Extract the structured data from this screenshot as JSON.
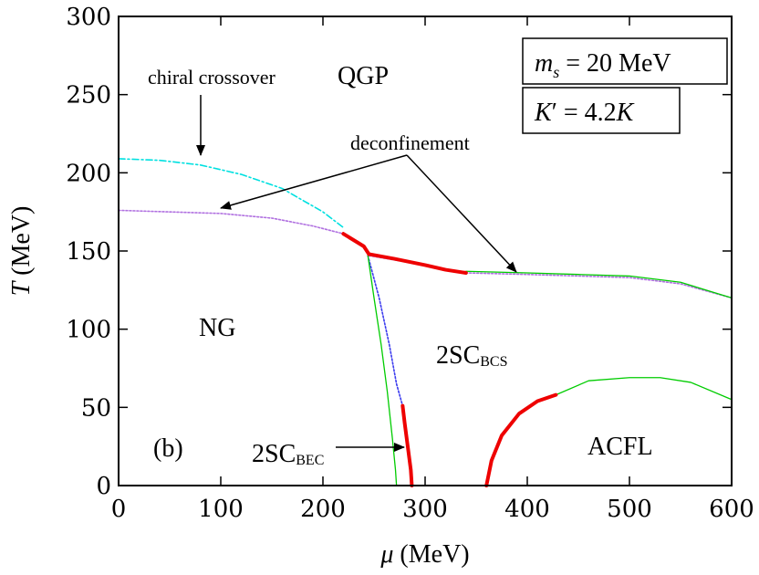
{
  "chart_data": {
    "type": "line",
    "xlabel": {
      "symbol": "μ",
      "unit": " (MeV)"
    },
    "ylabel": {
      "symbol": "T",
      "unit": " (MeV)"
    },
    "xlim": [
      0,
      600
    ],
    "ylim": [
      0,
      300
    ],
    "xticks": [
      "0",
      "100",
      "200",
      "300",
      "400",
      "500",
      "600"
    ],
    "yticks": [
      "0",
      "50",
      "100",
      "150",
      "200",
      "250",
      "300"
    ],
    "panel_label": "(b)",
    "legend": [
      {
        "sym": "m",
        "sub": "s",
        "rest": " = 20 MeV"
      },
      {
        "sym": "K",
        "prime": "′",
        "mid": " = 4.2",
        "sym2": "K"
      }
    ],
    "regions": {
      "qgp": "QGP",
      "ng": "NG",
      "acfl": "ACFL",
      "sc_bcs": {
        "main": "2SC",
        "sub": "BCS"
      },
      "sc_bec": {
        "main": "2SC",
        "sub": "BEC"
      }
    },
    "annotations": {
      "chiral": "chiral crossover",
      "deconf": "deconfinement"
    },
    "series": [
      {
        "id": "chiral-crossover",
        "color": "#00e0e0",
        "style": "dashdot",
        "points": [
          [
            0,
            209
          ],
          [
            40,
            208
          ],
          [
            80,
            205
          ],
          [
            120,
            199
          ],
          [
            160,
            190
          ],
          [
            200,
            175
          ],
          [
            220,
            165
          ]
        ]
      },
      {
        "id": "deconfinement-low",
        "color": "#b070e0",
        "style": "dotted",
        "points": [
          [
            0,
            176
          ],
          [
            50,
            175
          ],
          [
            100,
            174
          ],
          [
            150,
            171
          ],
          [
            190,
            166
          ],
          [
            220,
            161
          ],
          [
            240,
            153
          ],
          [
            245,
            148
          ]
        ]
      },
      {
        "id": "deconfinement-high",
        "color": "#b070e0",
        "style": "dotted",
        "points": [
          [
            245,
            147
          ],
          [
            300,
            141
          ],
          [
            340,
            136
          ],
          [
            400,
            135
          ],
          [
            450,
            134
          ],
          [
            500,
            133
          ],
          [
            550,
            129
          ],
          [
            600,
            120
          ]
        ]
      },
      {
        "id": "first-order-a",
        "color": "#ee0000",
        "style": "thick",
        "points": [
          [
            220,
            161
          ],
          [
            240,
            153
          ],
          [
            245,
            148
          ]
        ]
      },
      {
        "id": "first-order-b",
        "color": "#ee0000",
        "style": "thick",
        "points": [
          [
            245,
            148
          ],
          [
            270,
            145
          ],
          [
            300,
            141
          ],
          [
            320,
            138
          ],
          [
            340,
            136
          ]
        ]
      },
      {
        "id": "first-order-c",
        "color": "#ee0000",
        "style": "thick",
        "points": [
          [
            278,
            51
          ],
          [
            280,
            40
          ],
          [
            283,
            25
          ],
          [
            286,
            10
          ],
          [
            287,
            0
          ]
        ]
      },
      {
        "id": "first-order-d",
        "color": "#ee0000",
        "style": "thick",
        "points": [
          [
            360,
            0
          ],
          [
            365,
            16
          ],
          [
            375,
            32
          ],
          [
            392,
            46
          ],
          [
            410,
            54
          ],
          [
            428,
            58
          ]
        ]
      },
      {
        "id": "second-order-upper",
        "color": "#00cc00",
        "style": "thin",
        "points": [
          [
            340,
            137
          ],
          [
            400,
            136
          ],
          [
            450,
            135
          ],
          [
            500,
            134
          ],
          [
            550,
            130
          ],
          [
            600,
            120
          ]
        ]
      },
      {
        "id": "second-order-ng",
        "color": "#00cc00",
        "style": "thin",
        "points": [
          [
            244,
            147
          ],
          [
            250,
            120
          ],
          [
            257,
            90
          ],
          [
            263,
            60
          ],
          [
            268,
            30
          ],
          [
            271,
            10
          ],
          [
            272,
            0
          ]
        ]
      },
      {
        "id": "second-order-acfl",
        "color": "#00cc00",
        "style": "thin",
        "points": [
          [
            428,
            58
          ],
          [
            460,
            67
          ],
          [
            500,
            69
          ],
          [
            530,
            69
          ],
          [
            560,
            66
          ],
          [
            600,
            55
          ]
        ]
      },
      {
        "id": "bcs-bec-crossover",
        "color": "#3a3aee",
        "style": "dotted",
        "points": [
          [
            244,
            147
          ],
          [
            255,
            120
          ],
          [
            265,
            90
          ],
          [
            272,
            65
          ],
          [
            278,
            51
          ]
        ]
      }
    ]
  }
}
